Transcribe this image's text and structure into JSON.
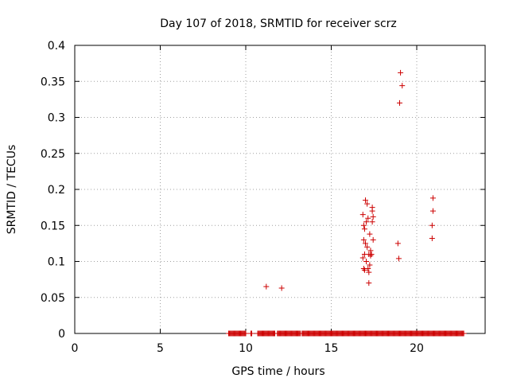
{
  "chart_data": {
    "type": "scatter",
    "title": "Day 107 of 2018, SRMTID for receiver scrz",
    "xlabel": "GPS time / hours",
    "ylabel": "SRMTID / TECUs",
    "xlim": [
      0,
      24
    ],
    "ylim": [
      0,
      0.4
    ],
    "xticks": [
      0,
      5,
      10,
      15,
      20
    ],
    "xtick_labels": [
      "0",
      "5",
      "10",
      "15",
      "20"
    ],
    "yticks": [
      0,
      0.05,
      0.1,
      0.15,
      0.2,
      0.25,
      0.3,
      0.35,
      0.4
    ],
    "ytick_labels": [
      "0",
      "0.05",
      "0.1",
      "0.15",
      "0.2",
      "0.25",
      "0.3",
      "0.35",
      "0.4"
    ],
    "grid": true,
    "legend": false,
    "marker": "plus",
    "color": "#cc0000",
    "zero_value_x_ranges": [
      [
        9.0,
        10.0
      ],
      [
        10.3,
        10.35
      ],
      [
        10.7,
        11.7
      ],
      [
        11.85,
        12.95
      ],
      [
        13.0,
        13.2
      ],
      [
        13.3,
        22.75
      ]
    ],
    "points": [
      {
        "x": 11.2,
        "y": 0.065
      },
      {
        "x": 12.1,
        "y": 0.063
      },
      {
        "x": 16.85,
        "y": 0.165
      },
      {
        "x": 16.9,
        "y": 0.15
      },
      {
        "x": 16.95,
        "y": 0.145
      },
      {
        "x": 17.0,
        "y": 0.185
      },
      {
        "x": 17.05,
        "y": 0.155
      },
      {
        "x": 17.1,
        "y": 0.18
      },
      {
        "x": 17.15,
        "y": 0.16
      },
      {
        "x": 16.9,
        "y": 0.13
      },
      {
        "x": 17.0,
        "y": 0.125
      },
      {
        "x": 16.95,
        "y": 0.11
      },
      {
        "x": 16.85,
        "y": 0.105
      },
      {
        "x": 17.1,
        "y": 0.12
      },
      {
        "x": 17.2,
        "y": 0.11
      },
      {
        "x": 17.25,
        "y": 0.095
      },
      {
        "x": 17.05,
        "y": 0.1
      },
      {
        "x": 16.9,
        "y": 0.09
      },
      {
        "x": 16.95,
        "y": 0.088
      },
      {
        "x": 17.2,
        "y": 0.085
      },
      {
        "x": 17.15,
        "y": 0.09
      },
      {
        "x": 17.25,
        "y": 0.138
      },
      {
        "x": 17.3,
        "y": 0.115
      },
      {
        "x": 17.35,
        "y": 0.11
      },
      {
        "x": 17.4,
        "y": 0.175
      },
      {
        "x": 17.4,
        "y": 0.17
      },
      {
        "x": 17.45,
        "y": 0.162
      },
      {
        "x": 17.4,
        "y": 0.155
      },
      {
        "x": 17.45,
        "y": 0.13
      },
      {
        "x": 17.2,
        "y": 0.07
      },
      {
        "x": 17.3,
        "y": 0.108
      },
      {
        "x": 18.9,
        "y": 0.125
      },
      {
        "x": 18.95,
        "y": 0.104
      },
      {
        "x": 19.0,
        "y": 0.32
      },
      {
        "x": 19.05,
        "y": 0.362
      },
      {
        "x": 19.15,
        "y": 0.344
      },
      {
        "x": 20.95,
        "y": 0.188
      },
      {
        "x": 20.95,
        "y": 0.17
      },
      {
        "x": 20.9,
        "y": 0.15
      },
      {
        "x": 20.9,
        "y": 0.132
      }
    ]
  }
}
